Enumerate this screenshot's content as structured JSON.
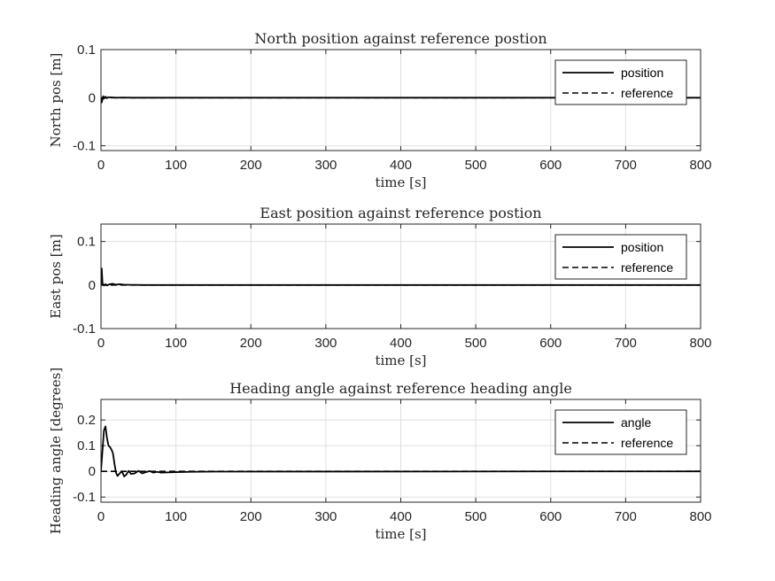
{
  "colors": {
    "line": "#000000",
    "grid": "#dfdfdf",
    "axis": "#262626",
    "background": "#ffffff"
  },
  "chart_data": [
    {
      "type": "line",
      "title": "North position against reference postion",
      "xlabel": "time [s]",
      "ylabel": "North pos [m]",
      "xlim": [
        0,
        800
      ],
      "ylim": [
        -0.11,
        0.1
      ],
      "xticks": [
        0,
        100,
        200,
        300,
        400,
        500,
        600,
        700,
        800
      ],
      "yticks": [
        -0.1,
        0,
        0.1
      ],
      "xtick_labels": [
        "0",
        "100",
        "200",
        "300",
        "400",
        "500",
        "600",
        "700",
        "800"
      ],
      "ytick_labels": [
        "-0.1",
        "0",
        "0.1"
      ],
      "grid": true,
      "legend": "top-right",
      "series": [
        {
          "name": "position",
          "style": "solid",
          "x": [
            0,
            1,
            2,
            3,
            4,
            6,
            8,
            10,
            15,
            20,
            30,
            40,
            60,
            800
          ],
          "y": [
            0,
            -0.01,
            -0.004,
            0.003,
            -0.002,
            0.002,
            -0.001,
            0.001,
            0.0005,
            0,
            0.0003,
            0,
            0,
            0
          ]
        },
        {
          "name": "reference",
          "style": "dashed",
          "x": [
            0,
            800
          ],
          "y": [
            0,
            0
          ]
        }
      ]
    },
    {
      "type": "line",
      "title": "East position against reference postion",
      "xlabel": "time [s]",
      "ylabel": "East pos [m]",
      "xlim": [
        0,
        800
      ],
      "ylim": [
        -0.1,
        0.14
      ],
      "xticks": [
        0,
        100,
        200,
        300,
        400,
        500,
        600,
        700,
        800
      ],
      "yticks": [
        -0.1,
        0,
        0.1
      ],
      "xtick_labels": [
        "0",
        "100",
        "200",
        "300",
        "400",
        "500",
        "600",
        "700",
        "800"
      ],
      "ytick_labels": [
        "-0.1",
        "0",
        "0.1"
      ],
      "grid": true,
      "legend": "top-right",
      "series": [
        {
          "name": "position",
          "style": "solid",
          "x": [
            0,
            1,
            2,
            3,
            4,
            6,
            8,
            10,
            15,
            20,
            25,
            30,
            40,
            60,
            800
          ],
          "y": [
            0,
            0.038,
            0.005,
            0.001,
            -0.001,
            0.002,
            -0.001,
            0.001,
            0.003,
            0.001,
            0.002,
            0.001,
            0.0005,
            0,
            0
          ]
        },
        {
          "name": "reference",
          "style": "dashed",
          "x": [
            0,
            800
          ],
          "y": [
            0,
            0
          ]
        }
      ]
    },
    {
      "type": "line",
      "title": "Heading angle against reference heading angle",
      "xlabel": "time [s]",
      "ylabel": "Heading angle [degrees]",
      "xlim": [
        0,
        800
      ],
      "ylim": [
        -0.12,
        0.28
      ],
      "xticks": [
        0,
        100,
        200,
        300,
        400,
        500,
        600,
        700,
        800
      ],
      "yticks": [
        -0.1,
        0,
        0.1,
        0.2
      ],
      "xtick_labels": [
        "0",
        "100",
        "200",
        "300",
        "400",
        "500",
        "600",
        "700",
        "800"
      ],
      "ytick_labels": [
        "-0.1",
        "0",
        "0.1",
        "0.2"
      ],
      "grid": true,
      "legend": "top-right",
      "series": [
        {
          "name": "angle",
          "style": "solid",
          "x": [
            0,
            2,
            4,
            6,
            8,
            10,
            12,
            14,
            16,
            18,
            20,
            22,
            25,
            28,
            31,
            34,
            37,
            40,
            45,
            50,
            55,
            60,
            65,
            70,
            75,
            80,
            90,
            100,
            120,
            150,
            800
          ],
          "y": [
            0,
            0.08,
            0.16,
            0.175,
            0.13,
            0.1,
            0.095,
            0.085,
            0.07,
            0.03,
            -0.005,
            -0.018,
            -0.008,
            0,
            -0.02,
            -0.012,
            0.002,
            -0.01,
            -0.008,
            0.002,
            -0.008,
            -0.003,
            0.001,
            -0.005,
            -0.002,
            -0.005,
            -0.004,
            -0.003,
            -0.002,
            -0.001,
            0
          ]
        },
        {
          "name": "reference",
          "style": "dashed",
          "x": [
            0,
            800
          ],
          "y": [
            0,
            0
          ]
        }
      ]
    }
  ]
}
